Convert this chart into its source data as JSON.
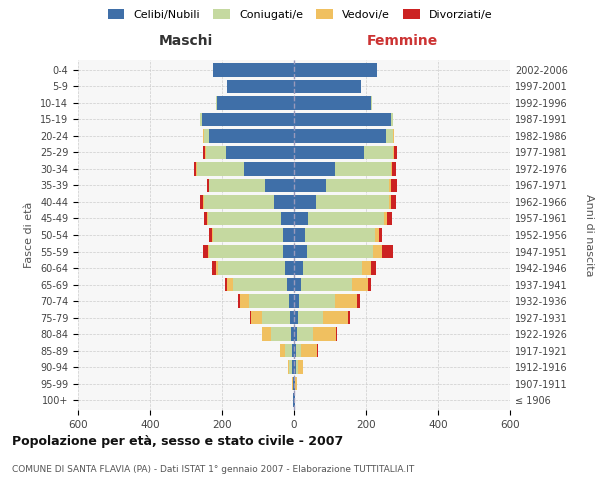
{
  "age_groups": [
    "100+",
    "95-99",
    "90-94",
    "85-89",
    "80-84",
    "75-79",
    "70-74",
    "65-69",
    "60-64",
    "55-59",
    "50-54",
    "45-49",
    "40-44",
    "35-39",
    "30-34",
    "25-29",
    "20-24",
    "15-19",
    "10-14",
    "5-9",
    "0-4"
  ],
  "birth_years": [
    "≤ 1906",
    "1907-1911",
    "1912-1916",
    "1917-1921",
    "1922-1926",
    "1927-1931",
    "1932-1936",
    "1937-1941",
    "1942-1946",
    "1947-1951",
    "1952-1956",
    "1957-1961",
    "1962-1966",
    "1967-1971",
    "1972-1976",
    "1977-1981",
    "1982-1986",
    "1987-1991",
    "1992-1996",
    "1997-2001",
    "2002-2006"
  ],
  "male_celibi": [
    2,
    2,
    5,
    5,
    8,
    10,
    15,
    20,
    25,
    30,
    30,
    35,
    55,
    80,
    140,
    190,
    235,
    255,
    215,
    185,
    225
  ],
  "male_coniugati": [
    0,
    2,
    8,
    20,
    55,
    80,
    110,
    150,
    185,
    205,
    195,
    205,
    195,
    155,
    130,
    55,
    15,
    5,
    2,
    2,
    0
  ],
  "male_vedovi": [
    0,
    2,
    5,
    15,
    25,
    30,
    25,
    15,
    8,
    5,
    2,
    2,
    2,
    2,
    2,
    2,
    2,
    0,
    0,
    0,
    0
  ],
  "male_divorziati": [
    0,
    0,
    0,
    0,
    2,
    2,
    5,
    8,
    10,
    12,
    10,
    8,
    8,
    5,
    5,
    5,
    2,
    0,
    0,
    0,
    0
  ],
  "female_celibi": [
    2,
    2,
    5,
    5,
    8,
    10,
    15,
    20,
    25,
    35,
    30,
    40,
    60,
    90,
    115,
    195,
    255,
    270,
    215,
    185,
    230
  ],
  "female_coniugati": [
    0,
    2,
    5,
    15,
    45,
    70,
    100,
    140,
    165,
    185,
    195,
    210,
    205,
    175,
    155,
    80,
    20,
    5,
    2,
    2,
    0
  ],
  "female_vedovi": [
    0,
    5,
    15,
    45,
    65,
    70,
    60,
    45,
    25,
    25,
    10,
    8,
    5,
    5,
    2,
    2,
    2,
    0,
    0,
    0,
    0
  ],
  "female_divorziati": [
    0,
    0,
    0,
    2,
    2,
    5,
    8,
    10,
    12,
    30,
    10,
    15,
    12,
    15,
    12,
    8,
    2,
    0,
    0,
    0,
    0
  ],
  "colors": {
    "celibi": "#3f6fa8",
    "coniugati": "#c5d9a0",
    "vedovi": "#f0c060",
    "divorziati": "#cc2222"
  },
  "xlim": 600,
  "title": "Popolazione per età, sesso e stato civile - 2007",
  "subtitle": "COMUNE DI SANTA FLAVIA (PA) - Dati ISTAT 1° gennaio 2007 - Elaborazione TUTTITALIA.IT",
  "ylabel_left": "Fasce di età",
  "ylabel_right": "Anni di nascita",
  "maschi_label": "Maschi",
  "femmine_label": "Femmine",
  "legend_labels": [
    "Celibi/Nubili",
    "Coniugati/e",
    "Vedovi/e",
    "Divorziati/e"
  ]
}
